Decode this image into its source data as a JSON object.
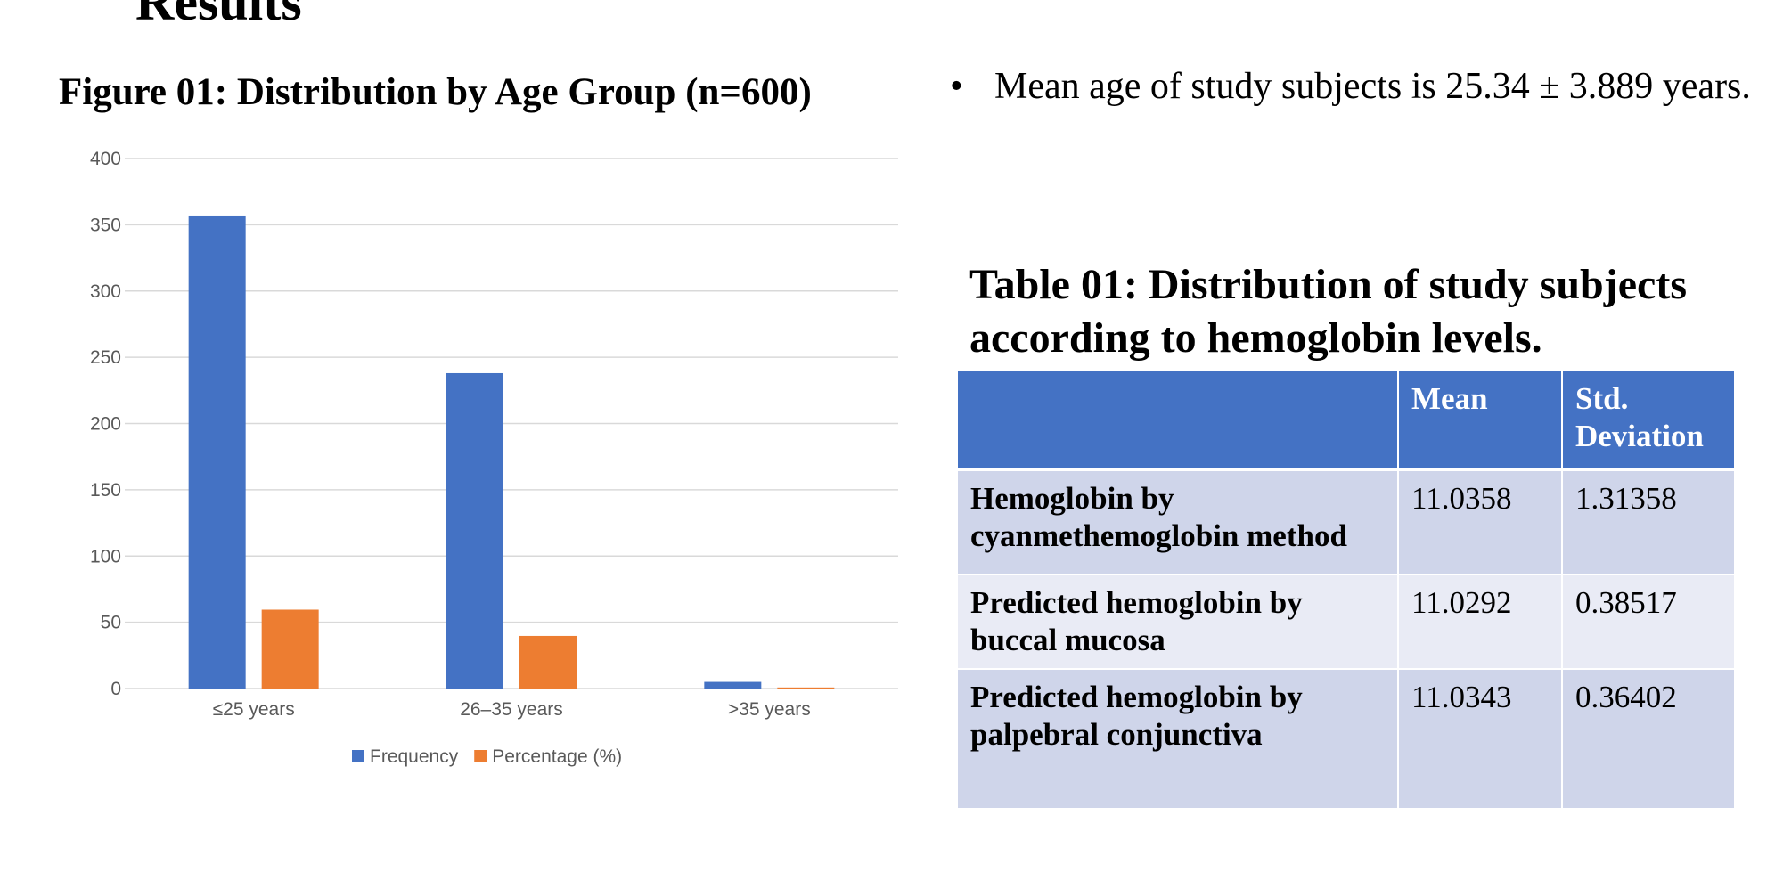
{
  "slide": {
    "title": "Results"
  },
  "chart_data": {
    "type": "bar",
    "title": "Figure 01: Distribution by Age Group (n=600)",
    "categories": [
      "≤25 years",
      "26–35 years",
      ">35 years"
    ],
    "series": [
      {
        "name": "Frequency",
        "color": "#4472c4",
        "values": [
          357,
          238,
          5
        ]
      },
      {
        "name": "Percentage (%)",
        "color": "#ed7d31",
        "values": [
          59.5,
          39.7,
          0.8
        ]
      }
    ],
    "ylim": [
      0,
      400
    ],
    "yticks": [
      0,
      50,
      100,
      150,
      200,
      250,
      300,
      350,
      400
    ],
    "grid": true,
    "legend": "bottom",
    "xlabel": "",
    "ylabel": ""
  },
  "bullet": {
    "text": "Mean age of study subjects is 25.34 ± 3.889 years."
  },
  "table": {
    "title": "Table 01: Distribution of study subjects according to hemoglobin levels.",
    "columns": [
      "",
      "Mean",
      "Std. Deviation"
    ],
    "rows": [
      [
        "Hemoglobin by cyanmethemoglobin method",
        "11.0358",
        "1.31358"
      ],
      [
        "Predicted hemoglobin by buccal mucosa",
        "11.0292",
        "0.38517"
      ],
      [
        "Predicted hemoglobin by palpebral conjunctiva",
        "11.0343",
        "0.36402"
      ]
    ],
    "header_color": "#4472c4",
    "row_colors": [
      "#cfd5ea",
      "#e9ebf5"
    ]
  }
}
